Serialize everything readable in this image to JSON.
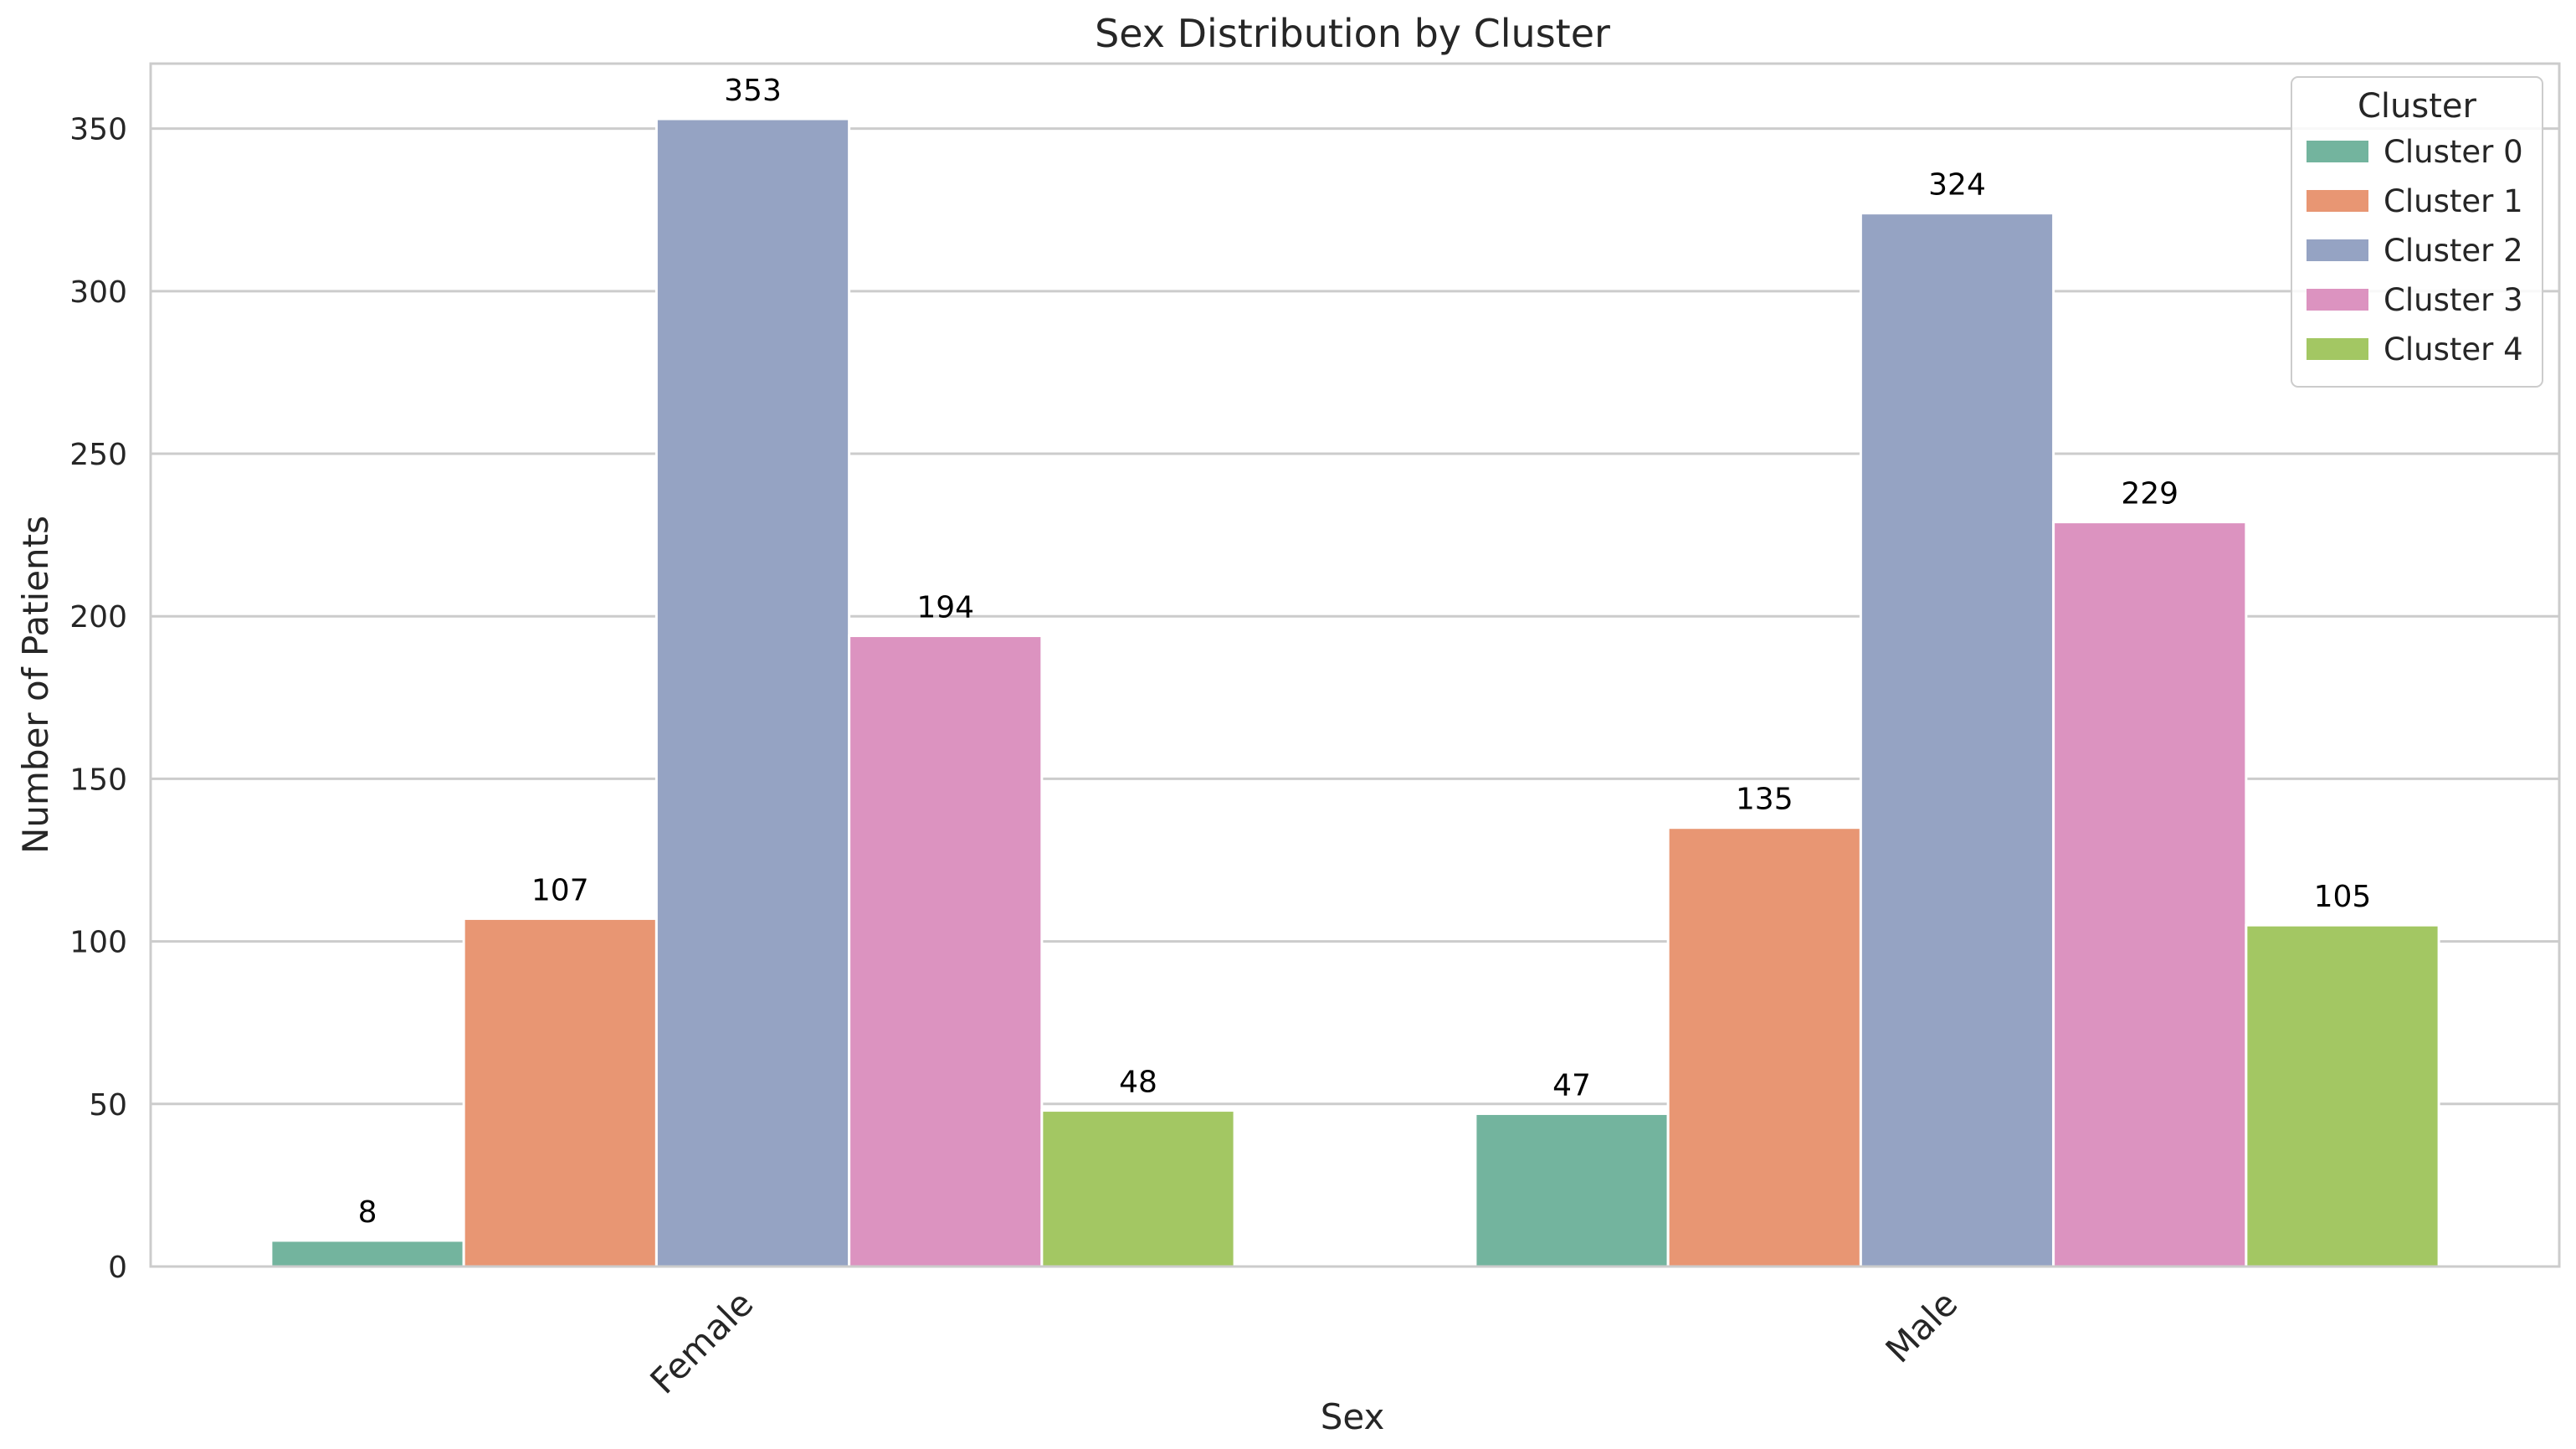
{
  "chart_data": {
    "type": "bar",
    "title": "Sex Distribution by Cluster",
    "xlabel": "Sex",
    "ylabel": "Number of Patients",
    "categories": [
      "Female",
      "Male"
    ],
    "ylim": [
      0,
      370
    ],
    "yticks": [
      0,
      50,
      100,
      150,
      200,
      250,
      300,
      350
    ],
    "grid": "on",
    "legend_placement": "top-right",
    "legend_title": "Cluster",
    "series": [
      {
        "name": "Cluster 0",
        "values": [
          8,
          47
        ],
        "color": "#73b49e"
      },
      {
        "name": "Cluster 1",
        "values": [
          107,
          135
        ],
        "color": "#e89673"
      },
      {
        "name": "Cluster 2",
        "values": [
          353,
          324
        ],
        "color": "#95a3c3"
      },
      {
        "name": "Cluster 3",
        "values": [
          194,
          229
        ],
        "color": "#dc93c0"
      },
      {
        "name": "Cluster 4",
        "values": [
          48,
          105
        ],
        "color": "#a3c763"
      }
    ]
  }
}
